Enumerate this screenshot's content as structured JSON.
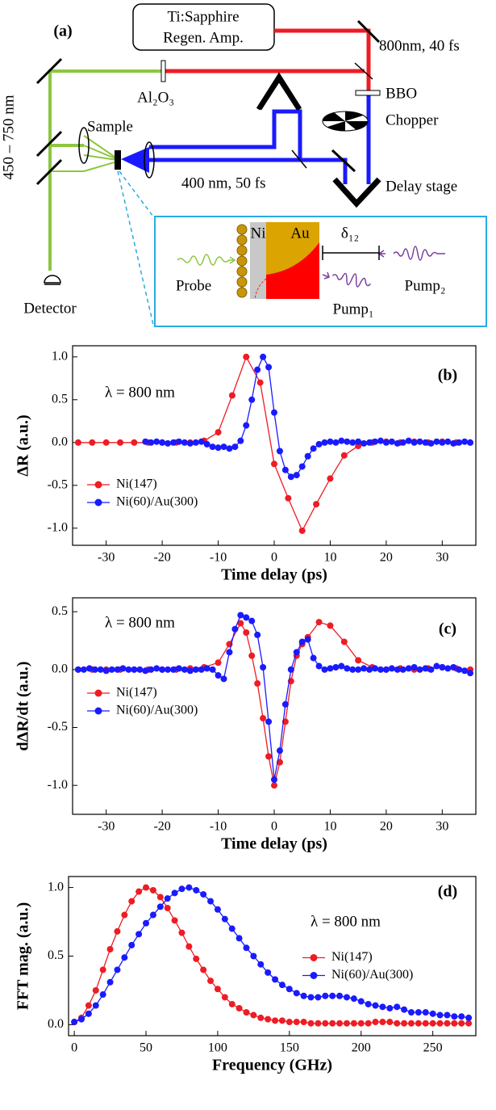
{
  "diagram": {
    "label": "(a)",
    "laser": [
      "Ti:Sapphire",
      "Regen. Amp."
    ],
    "pulse_800": "800nm, 40 fs",
    "window": "Al₂O₃",
    "bbo": "BBO",
    "chopper": "Chopper",
    "probe_range": "450 – 750 nm",
    "sample": "Sample",
    "pulse_400": "400 nm, 50 fs",
    "delay_stage": "Delay stage",
    "detector": "Detector",
    "inset": {
      "ni": "Ni",
      "au": "Au",
      "delay": "δ₁₂",
      "probe": "Probe",
      "pump1": "Pump₁",
      "pump2": "Pump₂"
    }
  },
  "chart_data": [
    {
      "type": "line",
      "panel_label": "(b)",
      "note": "λ = 800 nm",
      "x_label": "Time delay (ps)",
      "y_label": "ΔR (a.u.)",
      "xlim": [
        -36,
        36
      ],
      "xticks": [
        -30,
        -20,
        -10,
        0,
        10,
        20,
        30
      ],
      "ylim": [
        -1.2,
        1.13
      ],
      "yticks": [
        {
          "value": -1,
          "label": "-1.0"
        },
        -0.5,
        {
          "value": 0,
          "label": "0.0"
        },
        0.5,
        {
          "value": 1,
          "label": "1.0"
        }
      ],
      "legend": "lower left",
      "series": [
        {
          "name": "Ni(147)",
          "color": "#ee1c24",
          "x": [
            -35,
            -32.5,
            -30,
            -27.5,
            -25,
            -22.5,
            -20,
            -17.5,
            -15,
            -12.5,
            -10,
            -7.5,
            -5,
            -2.5,
            0,
            2.5,
            5,
            7.5,
            10,
            12.5,
            15,
            17.5,
            20,
            22.5,
            25,
            27.5,
            30,
            32.5,
            35
          ],
          "values": [
            0,
            0,
            0,
            0,
            0,
            0,
            0,
            0,
            0,
            0.02,
            0.12,
            0.55,
            1.0,
            0.7,
            -0.25,
            -0.65,
            -1.03,
            -0.72,
            -0.42,
            -0.15,
            -0.04,
            0,
            0.01,
            0,
            0.01,
            0,
            0.01,
            0,
            0
          ]
        },
        {
          "name": "Ni(60)/Au(300)",
          "color": "#1a1aff",
          "x": [
            -23,
            -22,
            -21,
            -20,
            -19,
            -18,
            -17,
            -16,
            -15,
            -14,
            -13,
            -12,
            -11,
            -10,
            -9,
            -8,
            -7,
            -6,
            -5,
            -4,
            -3,
            -2,
            -1,
            0,
            1,
            2,
            3,
            4,
            5,
            6,
            7,
            8,
            9,
            10,
            11,
            12,
            13,
            14,
            15,
            16,
            17,
            18,
            19,
            20,
            21,
            22,
            23,
            24,
            25,
            26,
            27,
            28,
            29,
            30,
            31,
            32,
            33,
            34,
            35
          ],
          "values": [
            0.01,
            0,
            0.01,
            0,
            -0.01,
            0,
            0.01,
            0,
            -0.01,
            0,
            0.01,
            -0.02,
            -0.05,
            -0.06,
            -0.05,
            -0.07,
            -0.05,
            0.02,
            0.2,
            0.5,
            0.85,
            1.0,
            0.88,
            0.35,
            -0.1,
            -0.32,
            -0.4,
            -0.38,
            -0.28,
            -0.16,
            -0.07,
            -0.02,
            0,
            0.01,
            0,
            0.02,
            0.01,
            0,
            0.01,
            -0.01,
            0,
            0.01,
            0.02,
            0,
            0.01,
            -0.01,
            0,
            0.02,
            0,
            0.01,
            0,
            -0.01,
            0.01,
            0,
            0.01,
            -0.01,
            0,
            0.01,
            0
          ]
        }
      ]
    },
    {
      "type": "line",
      "panel_label": "(c)",
      "note": "λ = 800 nm",
      "x_label": "Time delay (ps)",
      "y_label": "dΔR/dt (a.u.)",
      "xlim": [
        -36,
        36
      ],
      "xticks": [
        -30,
        -20,
        -10,
        0,
        10,
        20,
        30
      ],
      "ylim": [
        -1.25,
        0.62
      ],
      "yticks": [
        {
          "value": -1,
          "label": "-1.0"
        },
        -0.5,
        {
          "value": 0,
          "label": "0.0"
        },
        0.5
      ],
      "legend": "center left",
      "series": [
        {
          "name": "Ni(147)",
          "color": "#ee1c24",
          "x": [
            -35,
            -32.5,
            -30,
            -27.5,
            -25,
            -22.5,
            -20,
            -17.5,
            -15,
            -12.5,
            -10,
            -8,
            -6,
            -5,
            -4,
            -3,
            -2,
            -1,
            0,
            1,
            2,
            3,
            4,
            5,
            6,
            8,
            10,
            12.5,
            15,
            17.5,
            20,
            22.5,
            25,
            27.5,
            30,
            32.5,
            35
          ],
          "values": [
            0,
            0,
            0,
            0,
            0,
            0,
            0,
            0,
            0.01,
            0.02,
            0.06,
            0.22,
            0.4,
            0.32,
            0.12,
            -0.12,
            -0.42,
            -0.75,
            -1.0,
            -0.8,
            -0.45,
            -0.1,
            0.12,
            0.22,
            0.28,
            0.41,
            0.38,
            0.24,
            0.08,
            0.02,
            0,
            0.01,
            0,
            0.01,
            0.02,
            0.01,
            0
          ]
        },
        {
          "name": "Ni(60)/Au(300)",
          "color": "#1a1aff",
          "x": [
            -35,
            -34,
            -33,
            -32,
            -31,
            -30,
            -29,
            -28,
            -27,
            -26,
            -25,
            -24,
            -23,
            -22,
            -21,
            -20,
            -19,
            -18,
            -17,
            -16,
            -15,
            -14,
            -13,
            -12,
            -11,
            -10,
            -9,
            -8,
            -7,
            -6,
            -5,
            -4,
            -3,
            -2,
            -1,
            0,
            1,
            2,
            3,
            4,
            5,
            6,
            7,
            8,
            9,
            10,
            11,
            12,
            13,
            14,
            15,
            16,
            17,
            18,
            19,
            20,
            21,
            22,
            23,
            24,
            25,
            26,
            27,
            28,
            29,
            30,
            31,
            32,
            33,
            34,
            35
          ],
          "values": [
            0,
            0,
            0.01,
            0,
            0,
            -0.01,
            0,
            0,
            0.01,
            0,
            0,
            0,
            -0.01,
            0,
            0.01,
            0,
            0,
            0,
            0.01,
            0,
            -0.01,
            0,
            0,
            0.01,
            0,
            -0.05,
            -0.08,
            0.15,
            0.35,
            0.47,
            0.45,
            0.42,
            0.3,
            0.02,
            -0.45,
            -0.95,
            -0.7,
            -0.3,
            0.0,
            0.15,
            0.24,
            0.26,
            0.1,
            0.03,
            0,
            0.01,
            0.02,
            0.03,
            0.01,
            0,
            0,
            0.01,
            0,
            0.01,
            0,
            0,
            0.01,
            0,
            0,
            0.01,
            0.02,
            0,
            0.01,
            0,
            0.03,
            0.02,
            0.01,
            0.02,
            0,
            -0.01,
            -0.03
          ]
        }
      ]
    },
    {
      "type": "line",
      "panel_label": "(d)",
      "note": "λ = 800 nm",
      "x_label": "Frequency (GHz)",
      "y_label": "FFT mag. (a.u.)",
      "xlim": [
        -4,
        280
      ],
      "xticks": [
        0,
        50,
        100,
        150,
        200,
        250
      ],
      "ylim": [
        -0.08,
        1.08
      ],
      "yticks": [
        {
          "value": 0,
          "label": "0.0"
        },
        0.5,
        {
          "value": 1,
          "label": "1.0"
        }
      ],
      "legend": "center right",
      "series": [
        {
          "name": "Ni(147)",
          "color": "#ee1c24",
          "x": [
            0,
            5,
            10,
            15,
            20,
            25,
            30,
            35,
            40,
            45,
            50,
            55,
            60,
            65,
            70,
            75,
            80,
            85,
            90,
            95,
            100,
            105,
            110,
            115,
            120,
            125,
            130,
            135,
            140,
            145,
            150,
            155,
            160,
            165,
            170,
            175,
            180,
            185,
            190,
            195,
            200,
            205,
            210,
            215,
            220,
            225,
            230,
            235,
            240,
            245,
            250,
            255,
            260,
            265,
            270,
            275
          ],
          "values": [
            0.02,
            0.05,
            0.14,
            0.25,
            0.4,
            0.55,
            0.68,
            0.8,
            0.9,
            0.97,
            1.0,
            0.98,
            0.93,
            0.85,
            0.76,
            0.67,
            0.57,
            0.48,
            0.4,
            0.32,
            0.26,
            0.2,
            0.15,
            0.12,
            0.09,
            0.07,
            0.05,
            0.04,
            0.03,
            0.03,
            0.02,
            0.02,
            0.02,
            0.01,
            0.01,
            0.01,
            0.01,
            0.01,
            0.01,
            0.01,
            0.01,
            0.01,
            0.02,
            0.02,
            0.02,
            0.01,
            0.01,
            0.01,
            0.01,
            0.01,
            0.01,
            0.01,
            0.01,
            0.01,
            0.01,
            0.01
          ]
        },
        {
          "name": "Ni(60)/Au(300)",
          "color": "#1a1aff",
          "x": [
            0,
            5,
            10,
            15,
            20,
            25,
            30,
            35,
            40,
            45,
            50,
            55,
            60,
            65,
            70,
            75,
            80,
            85,
            90,
            95,
            100,
            105,
            110,
            115,
            120,
            125,
            130,
            135,
            140,
            145,
            150,
            155,
            160,
            165,
            170,
            175,
            180,
            185,
            190,
            195,
            200,
            205,
            210,
            215,
            220,
            225,
            230,
            235,
            240,
            245,
            250,
            255,
            260,
            265,
            270,
            275
          ],
          "values": [
            0.02,
            0.04,
            0.08,
            0.14,
            0.22,
            0.31,
            0.4,
            0.49,
            0.58,
            0.66,
            0.74,
            0.8,
            0.86,
            0.92,
            0.96,
            0.99,
            1.0,
            0.98,
            0.95,
            0.9,
            0.84,
            0.77,
            0.7,
            0.63,
            0.56,
            0.5,
            0.44,
            0.38,
            0.33,
            0.29,
            0.26,
            0.23,
            0.21,
            0.2,
            0.2,
            0.21,
            0.21,
            0.21,
            0.2,
            0.19,
            0.17,
            0.15,
            0.14,
            0.13,
            0.12,
            0.13,
            0.11,
            0.09,
            0.09,
            0.09,
            0.08,
            0.07,
            0.07,
            0.06,
            0.06,
            0.05
          ]
        }
      ]
    }
  ]
}
